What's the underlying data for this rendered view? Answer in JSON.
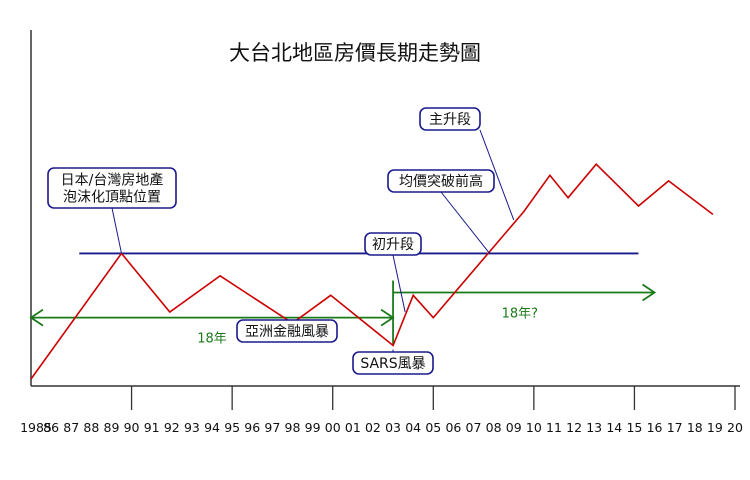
{
  "chart_data": {
    "type": "line",
    "title": "大台北地區房價長期走勢圖",
    "x_ticks": [
      "1985",
      "86",
      "87",
      "88",
      "89",
      "90",
      "91",
      "92",
      "93",
      "94",
      "95",
      "96",
      "97",
      "98",
      "99",
      "00",
      "01",
      "02",
      "03",
      "04",
      "05",
      "06",
      "07",
      "08",
      "09",
      "10",
      "11",
      "12",
      "13",
      "14",
      "15",
      "16",
      "17",
      "18",
      "19",
      "20"
    ],
    "x_range": [
      1985,
      2020
    ],
    "y_range": [
      0,
      100
    ],
    "series": [
      {
        "color": "#cc0000",
        "points": [
          {
            "x": 1985.0,
            "y": 0
          },
          {
            "x": 1989.5,
            "y": 45
          },
          {
            "x": 1991.9,
            "y": 24
          },
          {
            "x": 1994.4,
            "y": 37
          },
          {
            "x": 1998.0,
            "y": 20
          },
          {
            "x": 1999.9,
            "y": 30
          },
          {
            "x": 2003.0,
            "y": 12
          },
          {
            "x": 2004.0,
            "y": 30
          },
          {
            "x": 2005.0,
            "y": 22
          },
          {
            "x": 2009.5,
            "y": 60
          },
          {
            "x": 2010.8,
            "y": 73
          },
          {
            "x": 2011.7,
            "y": 65
          },
          {
            "x": 2013.1,
            "y": 77
          },
          {
            "x": 2015.2,
            "y": 62
          },
          {
            "x": 2016.7,
            "y": 71
          },
          {
            "x": 2018.9,
            "y": 59
          }
        ]
      }
    ],
    "reference_line": {
      "color": "#1a1a8c",
      "x_from": 1987.4,
      "x_to": 2015.2,
      "y": 45
    },
    "arrows": [
      {
        "label": "18年",
        "x_from": 1985.0,
        "x_to": 2003.0,
        "y": 22,
        "color": "#1a7a1a"
      },
      {
        "label": "18年?",
        "x_from": 2003.0,
        "x_to": 2016.0,
        "y": 31,
        "color": "#1a7a1a"
      }
    ],
    "annotations": [
      {
        "lines": [
          "日本/台灣房地產",
          "泡沫化頂點位置"
        ],
        "target": {
          "x": 1989.5,
          "y": 45
        }
      },
      {
        "lines": [
          "亞洲金融風暴"
        ],
        "target": {
          "x": 1998.0,
          "y": 20
        }
      },
      {
        "lines": [
          "SARS風暴"
        ],
        "target": {
          "x": 2003.0,
          "y": 12
        }
      },
      {
        "lines": [
          "初升段"
        ],
        "target": {
          "x": 2003.5,
          "y": 22
        }
      },
      {
        "lines": [
          "均價突破前高"
        ],
        "target": {
          "x": 2007.8,
          "y": 45
        }
      },
      {
        "lines": [
          "主升段"
        ],
        "target": {
          "x": 2009.0,
          "y": 57
        }
      }
    ]
  }
}
